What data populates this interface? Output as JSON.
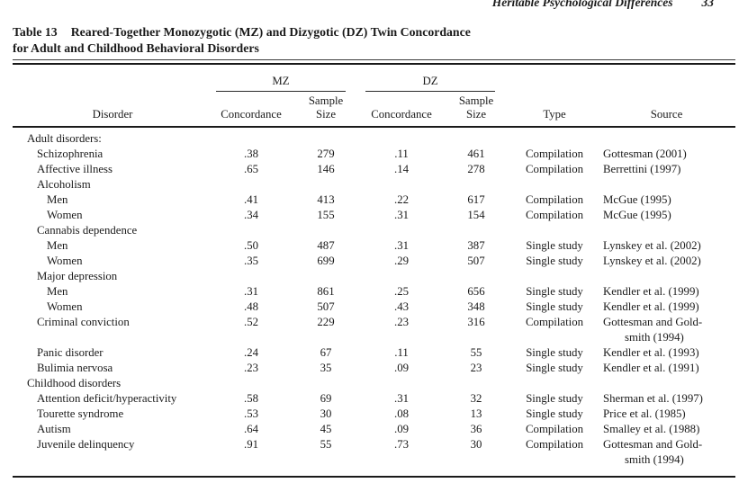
{
  "page": {
    "running_head": "Heritable Psychological Differences",
    "page_number": "33"
  },
  "table": {
    "label": "Table 13",
    "title_line1": "Reared-Together Monozygotic (MZ) and Dizygotic (DZ) Twin Concordance",
    "title_line2": "for Adult and Childhood Behavioral Disorders",
    "group_mz": "MZ",
    "group_dz": "DZ",
    "columns": {
      "disorder": "Disorder",
      "concordance": "Concordance",
      "sample": "Sample",
      "size": "Size",
      "type": "Type",
      "source": "Source"
    },
    "rows": [
      {
        "indent": 0,
        "disorder": "Adult disorders:",
        "mz_c": "",
        "mz_n": "",
        "dz_c": "",
        "dz_n": "",
        "type": "",
        "source": ""
      },
      {
        "indent": 1,
        "disorder": "Schizophrenia",
        "mz_c": ".38",
        "mz_n": "279",
        "dz_c": ".11",
        "dz_n": "461",
        "type": "Compilation",
        "source": "Gottesman (2001)"
      },
      {
        "indent": 1,
        "disorder": "Affective illness",
        "mz_c": ".65",
        "mz_n": "146",
        "dz_c": ".14",
        "dz_n": "278",
        "type": "Compilation",
        "source": "Berrettini (1997)"
      },
      {
        "indent": 1,
        "disorder": "Alcoholism",
        "mz_c": "",
        "mz_n": "",
        "dz_c": "",
        "dz_n": "",
        "type": "",
        "source": ""
      },
      {
        "indent": 2,
        "disorder": "Men",
        "mz_c": ".41",
        "mz_n": "413",
        "dz_c": ".22",
        "dz_n": "617",
        "type": "Compilation",
        "source": "McGue (1995)"
      },
      {
        "indent": 2,
        "disorder": "Women",
        "mz_c": ".34",
        "mz_n": "155",
        "dz_c": ".31",
        "dz_n": "154",
        "type": "Compilation",
        "source": "McGue (1995)"
      },
      {
        "indent": 1,
        "disorder": "Cannabis dependence",
        "mz_c": "",
        "mz_n": "",
        "dz_c": "",
        "dz_n": "",
        "type": "",
        "source": ""
      },
      {
        "indent": 2,
        "disorder": "Men",
        "mz_c": ".50",
        "mz_n": "487",
        "dz_c": ".31",
        "dz_n": "387",
        "type": "Single study",
        "source": "Lynskey et al. (2002)"
      },
      {
        "indent": 2,
        "disorder": "Women",
        "mz_c": ".35",
        "mz_n": "699",
        "dz_c": ".29",
        "dz_n": "507",
        "type": "Single study",
        "source": "Lynskey et al. (2002)"
      },
      {
        "indent": 1,
        "disorder": "Major depression",
        "mz_c": "",
        "mz_n": "",
        "dz_c": "",
        "dz_n": "",
        "type": "",
        "source": ""
      },
      {
        "indent": 2,
        "disorder": "Men",
        "mz_c": ".31",
        "mz_n": "861",
        "dz_c": ".25",
        "dz_n": "656",
        "type": "Single study",
        "source": "Kendler et al. (1999)"
      },
      {
        "indent": 2,
        "disorder": "Women",
        "mz_c": ".48",
        "mz_n": "507",
        "dz_c": ".43",
        "dz_n": "348",
        "type": "Single study",
        "source": "Kendler et al. (1999)"
      },
      {
        "indent": 1,
        "disorder": "Criminal conviction",
        "mz_c": ".52",
        "mz_n": "229",
        "dz_c": ".23",
        "dz_n": "316",
        "type": "Compilation",
        "source": "Gottesman and Gold-\nsmith (1994)"
      },
      {
        "indent": 1,
        "disorder": "Panic disorder",
        "mz_c": ".24",
        "mz_n": "67",
        "dz_c": ".11",
        "dz_n": "55",
        "type": "Single study",
        "source": "Kendler et al. (1993)"
      },
      {
        "indent": 1,
        "disorder": "Bulimia nervosa",
        "mz_c": ".23",
        "mz_n": "35",
        "dz_c": ".09",
        "dz_n": "23",
        "type": "Single study",
        "source": "Kendler et al. (1991)"
      },
      {
        "indent": 0,
        "disorder": "Childhood disorders",
        "mz_c": "",
        "mz_n": "",
        "dz_c": "",
        "dz_n": "",
        "type": "",
        "source": ""
      },
      {
        "indent": 1,
        "disorder": "Attention deficit/hyperactivity",
        "mz_c": ".58",
        "mz_n": "69",
        "dz_c": ".31",
        "dz_n": "32",
        "type": "Single study",
        "source": "Sherman et al. (1997)"
      },
      {
        "indent": 1,
        "disorder": "Tourette syndrome",
        "mz_c": ".53",
        "mz_n": "30",
        "dz_c": ".08",
        "dz_n": "13",
        "type": "Single study",
        "source": "Price et al. (1985)"
      },
      {
        "indent": 1,
        "disorder": "Autism",
        "mz_c": ".64",
        "mz_n": "45",
        "dz_c": ".09",
        "dz_n": "36",
        "type": "Compilation",
        "source": "Smalley et al. (1988)"
      },
      {
        "indent": 1,
        "disorder": "Juvenile delinquency",
        "mz_c": ".91",
        "mz_n": "55",
        "dz_c": ".73",
        "dz_n": "30",
        "type": "Compilation",
        "source": "Gottesman and Gold-\nsmith (1994)"
      }
    ]
  }
}
